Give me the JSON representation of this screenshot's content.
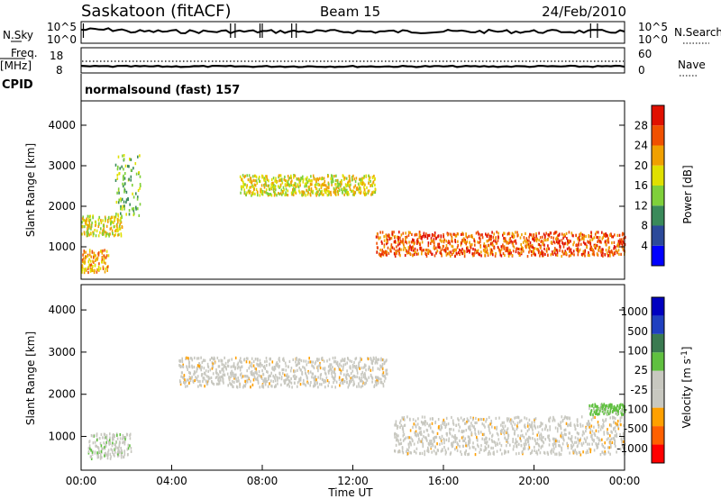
{
  "header": {
    "station": "Saskatoon (fitACF)",
    "beam": "Beam 15",
    "date": "24/Feb/2010"
  },
  "panels": {
    "nsky_label": "N.Sky",
    "nsearch_label": "N.Search",
    "nsky_ticks": [
      "10^5",
      "10^0"
    ],
    "nsearch_ticks": [
      "10^5",
      "10^0"
    ],
    "freq_label_1": "Freq.",
    "freq_label_2": "[MHz]",
    "freq_ticks": [
      "18",
      "8"
    ],
    "nave_label": "Nave",
    "nave_ticks": [
      "60",
      "0"
    ],
    "cpid_label": "CPID",
    "cpid_value": "normalsound (fast) 157"
  },
  "colors": {
    "power_scale": [
      "#0000ff",
      "#2c4a9a",
      "#3a8a5a",
      "#7fd03a",
      "#e0e000",
      "#f0a000",
      "#f05000",
      "#e01000"
    ],
    "velocity_scale": [
      "#ff0000",
      "#ff6000",
      "#ffa000",
      "#c8c8c0",
      "#c8c8c0",
      "#60c040",
      "#3a7a50",
      "#2040c0",
      "#0000c0"
    ],
    "ground_scatter": "#c8c8c0"
  },
  "chart_data": [
    {
      "type": "heatmap",
      "title": "",
      "xlabel": "",
      "ylabel": "Slant Range [km]",
      "xlim": [
        0,
        24
      ],
      "ylim": [
        200,
        4600
      ],
      "x_ticks": [
        "00:00",
        "04:00",
        "08:00",
        "12:00",
        "16:00",
        "20:00",
        "00:00"
      ],
      "y_ticks": [
        1000,
        2000,
        3000,
        4000
      ],
      "colorbar": {
        "label": "Power [dB]",
        "ticks": [
          4,
          8,
          12,
          16,
          20,
          24,
          28
        ],
        "range": [
          0,
          32
        ]
      },
      "scatter_bands": [
        {
          "x_start": 0.0,
          "x_end": 1.2,
          "y_start": 400,
          "y_end": 950,
          "level": 22
        },
        {
          "x_start": 0.0,
          "x_end": 1.8,
          "y_start": 1300,
          "y_end": 1800,
          "level": 18
        },
        {
          "x_start": 1.5,
          "x_end": 2.6,
          "y_start": 1800,
          "y_end": 3300,
          "level": 14
        },
        {
          "x_start": 7.0,
          "x_end": 13.0,
          "y_start": 2300,
          "y_end": 2800,
          "level": 18
        },
        {
          "x_start": 13.0,
          "x_end": 24.0,
          "y_start": 800,
          "y_end": 1400,
          "level": 26
        }
      ]
    },
    {
      "type": "heatmap",
      "title": "",
      "xlabel": "Time UT",
      "ylabel": "Slant Range [km]",
      "xlim": [
        0,
        24
      ],
      "ylim": [
        200,
        4600
      ],
      "x_ticks": [
        "00:00",
        "04:00",
        "08:00",
        "12:00",
        "16:00",
        "20:00",
        "00:00"
      ],
      "y_ticks": [
        1000,
        2000,
        3000,
        4000
      ],
      "colorbar": {
        "label": "Velocity [m s^-1]",
        "ticks": [
          1000,
          500,
          100,
          25,
          -25,
          -100,
          -500,
          -1000
        ]
      },
      "scatter_bands": [
        {
          "x_start": 0.3,
          "x_end": 2.2,
          "y_start": 500,
          "y_end": 1100,
          "level": 80
        },
        {
          "x_start": 4.3,
          "x_end": 13.5,
          "y_start": 2200,
          "y_end": 2900,
          "level": 0
        },
        {
          "x_start": 13.8,
          "x_end": 24.0,
          "y_start": 600,
          "y_end": 1500,
          "level": 0
        },
        {
          "x_start": 22.4,
          "x_end": 24.0,
          "y_start": 1550,
          "y_end": 1800,
          "level": 120
        }
      ]
    }
  ]
}
